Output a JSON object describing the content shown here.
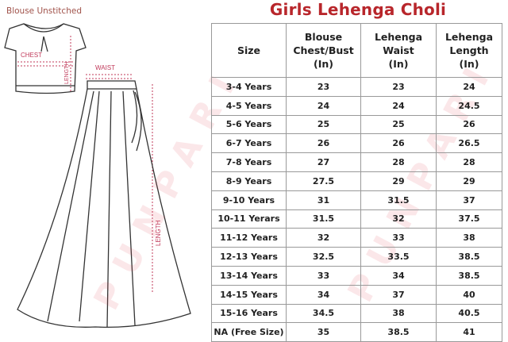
{
  "caption": "Blouse Unstitched",
  "title": "Girls Lehenga Choli",
  "diagram_labels": {
    "chest": "CHEST",
    "blouse_length": "LENGTH",
    "waist": "WAIST",
    "lehenga_length": "LENGTH"
  },
  "colors": {
    "title": "#b8262b",
    "measure": "#c0395a"
  },
  "table": {
    "headers": [
      [
        "Size"
      ],
      [
        "Blouse",
        "Chest/Bust",
        "(In)"
      ],
      [
        "Lehenga",
        "Waist",
        "(In)"
      ],
      [
        "Lehenga",
        "Length",
        "(In)"
      ]
    ],
    "rows": [
      [
        "3-4 Years",
        "23",
        "23",
        "24"
      ],
      [
        "4-5 Years",
        "24",
        "24",
        "24.5"
      ],
      [
        "5-6 Years",
        "25",
        "25",
        "26"
      ],
      [
        "6-7 Years",
        "26",
        "26",
        "26.5"
      ],
      [
        "7-8 Years",
        "27",
        "28",
        "28"
      ],
      [
        "8-9 Years",
        "27.5",
        "29",
        "29"
      ],
      [
        "9-10 Years",
        "31",
        "31.5",
        "37"
      ],
      [
        "10-11 Yerars",
        "31.5",
        "32",
        "37.5"
      ],
      [
        "11-12 Years",
        "32",
        "33",
        "38"
      ],
      [
        "12-13 Years",
        "32.5",
        "33.5",
        "38.5"
      ],
      [
        "13-14 Years",
        "33",
        "34",
        "38.5"
      ],
      [
        "14-15 Years",
        "34",
        "37",
        "40"
      ],
      [
        "15-16 Years",
        "34.5",
        "38",
        "40.5"
      ],
      [
        "NA (Free Size)",
        "35",
        "38.5",
        "41"
      ]
    ]
  }
}
